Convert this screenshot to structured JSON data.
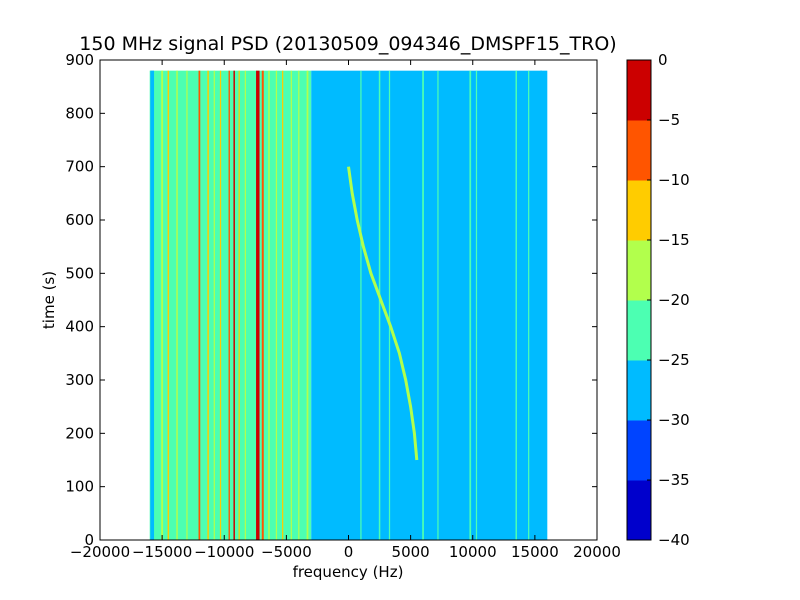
{
  "chart_data": {
    "type": "heatmap",
    "title": "150 MHz signal PSD (20130509_094346_DMSPF15_TRO)",
    "xlabel": "frequency (Hz)",
    "ylabel": "time (s)",
    "xlim": [
      -20000,
      20000
    ],
    "ylim": [
      0,
      900
    ],
    "x_ticks": [
      -20000,
      -15000,
      -10000,
      -5000,
      0,
      5000,
      10000,
      15000,
      20000
    ],
    "x_tick_labels": [
      "−20000",
      "−15000",
      "−10000",
      "−5000",
      "0",
      "5000",
      "10000",
      "15000",
      "20000"
    ],
    "y_ticks": [
      0,
      100,
      200,
      300,
      400,
      500,
      600,
      700,
      800,
      900
    ],
    "y_tick_labels": [
      "0",
      "100",
      "200",
      "300",
      "400",
      "500",
      "600",
      "700",
      "800",
      "900"
    ],
    "data_extent": {
      "x": [
        -16000,
        16000
      ],
      "y": [
        0,
        880
      ]
    },
    "colorbar": {
      "range": [
        -40,
        0
      ],
      "levels": [
        -40,
        -35,
        -30,
        -25,
        -20,
        -15,
        -10,
        -5,
        0
      ],
      "tick_labels": [
        "−40",
        "−35",
        "−30",
        "−25",
        "−20",
        "−15",
        "−10",
        "−5",
        "0"
      ],
      "colors": [
        "#0000cc",
        "#0044ff",
        "#00bbff",
        "#4cffb2",
        "#b2ff4c",
        "#ffcc00",
        "#ff5500",
        "#cc0000"
      ]
    },
    "background_levels": [
      {
        "x_range": [
          -16000,
          -3000
        ],
        "level": -22.5
      },
      {
        "x_range": [
          -3000,
          16000
        ],
        "level": -27.5
      }
    ],
    "vertical_features": [
      {
        "x": -15800,
        "level": -27.5,
        "width_hz": 300
      },
      {
        "x": -15000,
        "level": -17.5,
        "width_hz": 150
      },
      {
        "x": -14500,
        "level": -12.5,
        "width_hz": 120
      },
      {
        "x": -13800,
        "level": -17.5,
        "width_hz": 120
      },
      {
        "x": -13000,
        "level": -17.5,
        "width_hz": 100
      },
      {
        "x": -12000,
        "level": -7.5,
        "width_hz": 140
      },
      {
        "x": -11300,
        "level": -12.5,
        "width_hz": 120
      },
      {
        "x": -10800,
        "level": -17.5,
        "width_hz": 100
      },
      {
        "x": -10300,
        "level": -12.5,
        "width_hz": 100
      },
      {
        "x": -9600,
        "level": -7.5,
        "width_hz": 110
      },
      {
        "x": -9200,
        "level": -2.5,
        "width_hz": 120
      },
      {
        "x": -8800,
        "level": -12.5,
        "width_hz": 100
      },
      {
        "x": -8300,
        "level": -17.5,
        "width_hz": 100
      },
      {
        "x": -7300,
        "level": -2.5,
        "width_hz": 280
      },
      {
        "x": -6900,
        "level": -7.5,
        "width_hz": 160
      },
      {
        "x": -6400,
        "level": -17.5,
        "width_hz": 120
      },
      {
        "x": -5800,
        "level": -17.5,
        "width_hz": 100
      },
      {
        "x": -5300,
        "level": -12.5,
        "width_hz": 100
      },
      {
        "x": -4600,
        "level": -17.5,
        "width_hz": 100
      },
      {
        "x": -4000,
        "level": -17.5,
        "width_hz": 100
      },
      {
        "x": -3300,
        "level": -17.5,
        "width_hz": 140
      },
      {
        "x": 1000,
        "level": -22.5,
        "width_hz": 100
      },
      {
        "x": 2500,
        "level": -22.5,
        "width_hz": 120
      },
      {
        "x": 3300,
        "level": -22.5,
        "width_hz": 100
      },
      {
        "x": 6000,
        "level": -22.5,
        "width_hz": 140
      },
      {
        "x": 7200,
        "level": -22.5,
        "width_hz": 100
      },
      {
        "x": 9800,
        "level": -22.5,
        "width_hz": 140
      },
      {
        "x": 10300,
        "level": -22.5,
        "width_hz": 100
      },
      {
        "x": 13500,
        "level": -22.5,
        "width_hz": 120
      },
      {
        "x": 14500,
        "level": -22.5,
        "width_hz": 100
      },
      {
        "x": 15500,
        "level": -27.5,
        "width_hz": 120
      }
    ],
    "doppler_trace": {
      "level": -17.5,
      "points": [
        {
          "time": 700,
          "freq": 0
        },
        {
          "time": 650,
          "freq": 300
        },
        {
          "time": 600,
          "freq": 700
        },
        {
          "time": 550,
          "freq": 1200
        },
        {
          "time": 500,
          "freq": 1800
        },
        {
          "time": 450,
          "freq": 2600
        },
        {
          "time": 400,
          "freq": 3400
        },
        {
          "time": 350,
          "freq": 4100
        },
        {
          "time": 300,
          "freq": 4600
        },
        {
          "time": 250,
          "freq": 5000
        },
        {
          "time": 200,
          "freq": 5300
        },
        {
          "time": 150,
          "freq": 5500
        }
      ]
    }
  }
}
